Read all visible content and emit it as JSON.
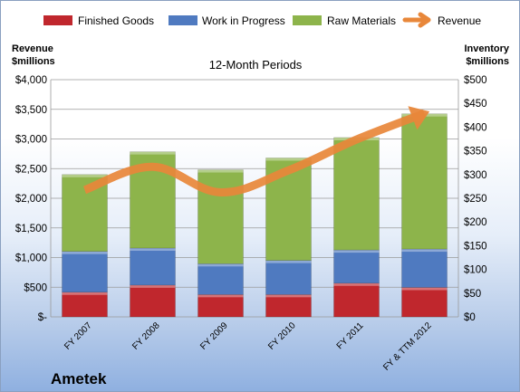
{
  "company": "Ametek",
  "colors": {
    "finished_goods": "#c0272d",
    "work_in_progress": "#4f7ac0",
    "raw_materials": "#8db44b",
    "revenue": "#e8873a"
  },
  "chart_data": {
    "type": "bar",
    "stacked": true,
    "subtitle": "12-Month Periods",
    "ylabel_left": [
      "Revenue",
      "$millions"
    ],
    "ylabel_right": [
      "Inventory",
      "$millions"
    ],
    "categories": [
      "FY 2007",
      "FY 2008",
      "FY 2009",
      "FY 2010",
      "FY 2011",
      "FY & TTM 2012"
    ],
    "series": [
      {
        "name": "Finished Goods",
        "axis": "right",
        "values": [
          52,
          67,
          47,
          47,
          71,
          62
        ]
      },
      {
        "name": "Work in Progress",
        "axis": "right",
        "values": [
          86,
          78,
          65,
          72,
          70,
          81
        ]
      },
      {
        "name": "Raw Materials",
        "axis": "right",
        "values": [
          162,
          203,
          198,
          216,
          237,
          285
        ]
      }
    ],
    "line_series": {
      "name": "Revenue",
      "axis": "left",
      "values": [
        2140,
        2530,
        2100,
        2470,
        2990,
        3430
      ]
    },
    "left_axis": {
      "min": 0,
      "max": 4000,
      "ticks": [
        "$-",
        "$500",
        "$1,000",
        "$1,500",
        "$2,000",
        "$2,500",
        "$3,000",
        "$3,500",
        "$4,000"
      ]
    },
    "right_axis": {
      "min": 0,
      "max": 500,
      "ticks": [
        "$0",
        "$50",
        "$100",
        "$150",
        "$200",
        "$250",
        "$300",
        "$350",
        "$400",
        "$450",
        "$500"
      ]
    },
    "legend": [
      "Finished Goods",
      "Work in Progress",
      "Raw Materials",
      "Revenue"
    ],
    "legend_position": "top",
    "grid": true
  }
}
